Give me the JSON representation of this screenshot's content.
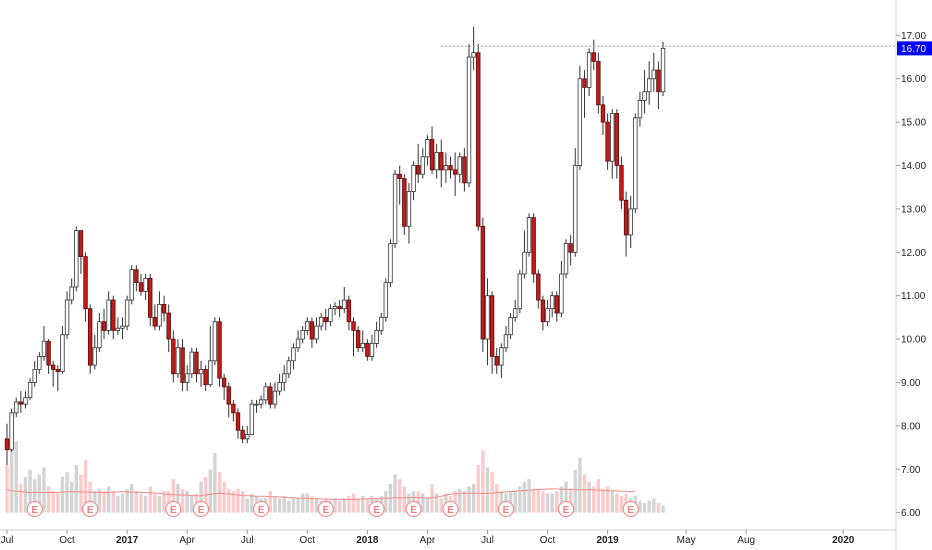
{
  "chart_data": {
    "type": "candlestick",
    "title": "",
    "xlabel": "",
    "ylabel": "",
    "ylim": [
      5.6,
      17.4
    ],
    "y_ticks": [
      "6.00",
      "7.00",
      "8.00",
      "9.00",
      "10.00",
      "11.00",
      "12.00",
      "13.00",
      "14.00",
      "15.00",
      "16.00",
      "17.00"
    ],
    "x_ticks": [
      {
        "label": "Jul",
        "week": 0,
        "year": false
      },
      {
        "label": "Oct",
        "week": 13,
        "year": false
      },
      {
        "label": "2017",
        "week": 26,
        "year": true
      },
      {
        "label": "Apr",
        "week": 39,
        "year": false
      },
      {
        "label": "Jul",
        "week": 52,
        "year": false
      },
      {
        "label": "Oct",
        "week": 65,
        "year": false
      },
      {
        "label": "2018",
        "week": 78,
        "year": true
      },
      {
        "label": "Apr",
        "week": 91,
        "year": false
      },
      {
        "label": "Jul",
        "week": 104,
        "year": false
      },
      {
        "label": "Oct",
        "week": 117,
        "year": false
      },
      {
        "label": "2019",
        "week": 130,
        "year": true
      },
      {
        "label": "May",
        "week": 147,
        "year": false
      },
      {
        "label": "Aug",
        "week": 160,
        "year": false
      },
      {
        "label": "2020",
        "week": 181,
        "year": true
      }
    ],
    "x_start": "2016-07-01",
    "interval": "weekly",
    "last_price": "16.70",
    "high_line": "16.75",
    "colors": {
      "up_body": "#ffffff",
      "up_border": "#333333",
      "down_body": "#c31a1a",
      "down_border": "#5a0c0c",
      "wick": "#333333",
      "price_label_bg": "#0000ff",
      "volume_up": "#d4d4d4",
      "volume_down": "#fbcaca",
      "volume_ma": "#f28b8b",
      "earnings_marker": "#f08080",
      "high_line": "#9e9e9e"
    },
    "earnings_label": "E",
    "earnings_weeks": [
      6,
      18,
      36,
      42,
      55,
      69,
      80,
      88,
      96,
      108,
      121,
      135
    ],
    "volume_ma": [
      6.97,
      6.91,
      6.89,
      6.88,
      6.86,
      6.84,
      6.85,
      6.86,
      6.84,
      6.85,
      6.84,
      6.85,
      6.86,
      6.87,
      6.88,
      6.87,
      6.87,
      6.86,
      6.85,
      6.86,
      6.85,
      6.84,
      6.85,
      6.86,
      6.87,
      6.88,
      6.87,
      6.86,
      6.86,
      6.85,
      6.84,
      6.84,
      6.82,
      6.81,
      6.78,
      6.77,
      6.75,
      6.74,
      6.74,
      6.73,
      6.72,
      6.71,
      6.71,
      6.75,
      6.77,
      6.79,
      6.81,
      6.79,
      6.78,
      6.75,
      6.74,
      6.72,
      6.71,
      6.7,
      6.69,
      6.69,
      6.68,
      6.67,
      6.67,
      6.66,
      6.65,
      6.63,
      6.62,
      6.61,
      6.6,
      6.6,
      6.59,
      6.58,
      6.57,
      6.57,
      6.56,
      6.55,
      6.56,
      6.55,
      6.55,
      6.55,
      6.56,
      6.57,
      6.58,
      6.58,
      6.59,
      6.6,
      6.6,
      6.61,
      6.62,
      6.62,
      6.62,
      6.63,
      6.63,
      6.63,
      6.62,
      6.61,
      6.62,
      6.65,
      6.69,
      6.73,
      6.77,
      6.79,
      6.8,
      6.81,
      6.81,
      6.81,
      6.81,
      6.8,
      6.81,
      6.82,
      6.84,
      6.85,
      6.87,
      6.89,
      6.9,
      6.91,
      6.93,
      6.94,
      6.96,
      6.97,
      6.98,
      6.99,
      7.0,
      6.99,
      6.98,
      6.98,
      6.97,
      6.96,
      6.95,
      6.96,
      6.97,
      6.96,
      6.95,
      6.94,
      6.93,
      6.92,
      6.91,
      6.9,
      6.89,
      6.88,
      6.87
    ],
    "candles": [
      [
        7.7,
        7.45,
        8.05,
        7.1,
        8.0
      ],
      [
        7.45,
        8.3,
        8.4,
        7.4,
        9.0
      ],
      [
        8.3,
        8.55,
        8.65,
        8.2,
        9.0
      ],
      [
        8.55,
        8.5,
        8.8,
        8.3,
        7.2
      ],
      [
        8.5,
        8.65,
        8.8,
        8.4,
        7.5
      ],
      [
        8.65,
        9.0,
        9.1,
        8.6,
        7.8
      ],
      [
        9.0,
        9.3,
        9.5,
        8.9,
        7.4
      ],
      [
        9.3,
        9.6,
        9.7,
        9.2,
        7.6
      ],
      [
        9.6,
        9.95,
        10.3,
        9.5,
        7.9
      ],
      [
        9.95,
        9.4,
        10.0,
        9.2,
        7.1
      ],
      [
        9.4,
        9.3,
        9.5,
        8.9,
        6.9
      ],
      [
        9.3,
        9.25,
        9.4,
        8.8,
        6.8
      ],
      [
        9.25,
        10.1,
        10.3,
        9.2,
        7.5
      ],
      [
        10.1,
        10.9,
        11.1,
        10.0,
        7.7
      ],
      [
        10.9,
        11.2,
        11.4,
        10.8,
        7.3
      ],
      [
        11.2,
        12.5,
        12.6,
        11.1,
        8.0
      ],
      [
        12.5,
        11.9,
        12.0,
        11.5,
        7.6
      ],
      [
        11.9,
        10.7,
        12.0,
        10.4,
        8.2
      ],
      [
        10.7,
        9.4,
        10.8,
        9.2,
        7.3
      ],
      [
        9.4,
        9.8,
        10.1,
        9.3,
        6.9
      ],
      [
        9.8,
        10.4,
        10.6,
        9.7,
        7.0
      ],
      [
        10.4,
        10.2,
        10.7,
        10.0,
        6.9
      ],
      [
        10.2,
        10.9,
        11.1,
        10.1,
        7.1
      ],
      [
        10.9,
        10.2,
        11.0,
        10.0,
        6.9
      ],
      [
        10.2,
        10.25,
        10.5,
        10.1,
        6.7
      ],
      [
        10.25,
        10.3,
        10.5,
        10.0,
        6.8
      ],
      [
        10.3,
        10.9,
        11.0,
        10.2,
        7.0
      ],
      [
        10.9,
        11.6,
        11.7,
        10.8,
        7.2
      ],
      [
        11.6,
        11.3,
        11.7,
        11.1,
        6.9
      ],
      [
        11.3,
        11.1,
        11.5,
        11.0,
        6.8
      ],
      [
        11.1,
        11.4,
        11.5,
        10.9,
        6.7
      ],
      [
        11.4,
        10.5,
        11.5,
        10.3,
        7.1
      ],
      [
        10.5,
        10.3,
        10.8,
        10.2,
        6.8
      ],
      [
        10.3,
        10.8,
        11.1,
        10.2,
        6.7
      ],
      [
        10.8,
        10.6,
        11.0,
        10.4,
        6.9
      ],
      [
        10.6,
        10.0,
        10.8,
        9.7,
        6.9
      ],
      [
        10.0,
        9.2,
        10.2,
        9.0,
        7.4
      ],
      [
        9.2,
        9.8,
        10.0,
        9.1,
        7.2
      ],
      [
        9.8,
        9.0,
        10.0,
        8.8,
        7.0
      ],
      [
        9.0,
        9.2,
        9.4,
        8.8,
        6.9
      ],
      [
        9.2,
        9.7,
        9.8,
        9.1,
        6.7
      ],
      [
        9.7,
        9.2,
        9.8,
        9.0,
        6.8
      ],
      [
        9.2,
        9.3,
        9.5,
        8.9,
        7.3
      ],
      [
        9.3,
        8.95,
        9.4,
        8.8,
        7.5
      ],
      [
        8.95,
        9.5,
        10.3,
        8.9,
        7.8
      ],
      [
        9.5,
        10.4,
        10.5,
        9.4,
        8.5
      ],
      [
        10.4,
        9.1,
        10.5,
        8.9,
        7.7
      ],
      [
        9.1,
        8.9,
        9.2,
        8.6,
        7.3
      ],
      [
        8.9,
        8.5,
        9.0,
        8.2,
        7.0
      ],
      [
        8.5,
        8.3,
        8.6,
        8.1,
        6.9
      ],
      [
        8.3,
        7.9,
        8.4,
        7.7,
        7.0
      ],
      [
        7.9,
        7.7,
        8.0,
        7.6,
        6.9
      ],
      [
        7.7,
        7.8,
        8.0,
        7.6,
        6.6
      ],
      [
        7.8,
        8.5,
        8.6,
        7.8,
        6.8
      ],
      [
        8.5,
        8.5,
        8.6,
        8.3,
        6.7
      ],
      [
        8.5,
        8.6,
        8.7,
        8.4,
        6.6
      ],
      [
        8.6,
        8.9,
        9.0,
        8.5,
        6.6
      ],
      [
        8.9,
        8.5,
        9.0,
        8.4,
        6.9
      ],
      [
        8.5,
        8.8,
        9.0,
        8.4,
        6.7
      ],
      [
        8.8,
        9.0,
        9.2,
        8.7,
        6.6
      ],
      [
        9.0,
        9.2,
        9.4,
        8.8,
        6.7
      ],
      [
        9.2,
        9.5,
        9.6,
        9.1,
        6.5
      ],
      [
        9.5,
        9.8,
        9.9,
        9.3,
        6.6
      ],
      [
        9.8,
        10.0,
        10.2,
        9.7,
        6.6
      ],
      [
        10.0,
        10.2,
        10.3,
        9.9,
        6.8
      ],
      [
        10.2,
        10.4,
        10.5,
        10.1,
        6.8
      ],
      [
        10.4,
        10.0,
        10.5,
        9.8,
        6.7
      ],
      [
        10.0,
        10.3,
        10.5,
        9.9,
        6.6
      ],
      [
        10.3,
        10.5,
        10.6,
        10.2,
        6.5
      ],
      [
        10.5,
        10.4,
        10.7,
        10.2,
        6.6
      ],
      [
        10.4,
        10.7,
        10.8,
        10.3,
        6.5
      ],
      [
        10.7,
        10.75,
        10.85,
        10.55,
        6.6
      ],
      [
        10.75,
        10.7,
        10.9,
        10.5,
        6.5
      ],
      [
        10.7,
        10.9,
        11.2,
        10.6,
        6.6
      ],
      [
        10.9,
        10.4,
        11.0,
        10.2,
        6.7
      ],
      [
        10.4,
        10.2,
        10.5,
        9.6,
        6.8
      ],
      [
        10.2,
        9.8,
        10.3,
        9.7,
        6.6
      ],
      [
        9.8,
        9.9,
        10.2,
        9.7,
        6.7
      ],
      [
        9.9,
        9.6,
        10.0,
        9.5,
        6.6
      ],
      [
        9.6,
        9.9,
        10.1,
        9.5,
        6.7
      ],
      [
        9.9,
        10.2,
        10.4,
        9.8,
        6.6
      ],
      [
        10.2,
        10.5,
        10.6,
        10.1,
        6.7
      ],
      [
        10.5,
        11.3,
        11.4,
        10.4,
        6.9
      ],
      [
        11.3,
        12.2,
        12.3,
        11.2,
        7.2
      ],
      [
        12.2,
        13.8,
        13.9,
        12.1,
        7.6
      ],
      [
        13.8,
        13.7,
        14.0,
        13.1,
        7.4
      ],
      [
        13.7,
        12.6,
        13.8,
        12.4,
        7.1
      ],
      [
        12.6,
        13.4,
        13.6,
        12.2,
        6.8
      ],
      [
        13.4,
        14.0,
        14.1,
        13.2,
        6.9
      ],
      [
        14.0,
        13.8,
        14.5,
        13.6,
        6.9
      ],
      [
        13.8,
        14.2,
        14.4,
        13.7,
        6.8
      ],
      [
        14.2,
        14.6,
        14.7,
        14.0,
        6.6
      ],
      [
        14.6,
        13.9,
        14.9,
        13.8,
        7.2
      ],
      [
        13.9,
        14.3,
        14.5,
        13.7,
        6.8
      ],
      [
        14.3,
        13.9,
        14.6,
        13.5,
        6.6
      ],
      [
        13.9,
        14.0,
        14.3,
        13.6,
        6.8
      ],
      [
        14.0,
        13.9,
        14.2,
        13.7,
        6.7
      ],
      [
        13.9,
        13.8,
        14.3,
        13.3,
        6.9
      ],
      [
        13.8,
        14.2,
        14.3,
        13.6,
        7.0
      ],
      [
        14.2,
        13.6,
        14.4,
        13.4,
        6.9
      ],
      [
        13.6,
        16.5,
        16.8,
        13.5,
        7.1
      ],
      [
        16.5,
        16.6,
        17.2,
        16.2,
        7.2
      ],
      [
        16.6,
        12.6,
        16.8,
        12.5,
        8.0
      ],
      [
        12.6,
        10.0,
        12.8,
        9.7,
        8.6
      ],
      [
        10.0,
        11.0,
        11.4,
        9.4,
        7.9
      ],
      [
        11.0,
        9.6,
        11.1,
        9.2,
        7.7
      ],
      [
        9.6,
        9.4,
        9.8,
        9.2,
        7.2
      ],
      [
        9.4,
        9.8,
        9.9,
        9.1,
        6.9
      ],
      [
        9.8,
        10.1,
        10.3,
        9.7,
        6.8
      ],
      [
        10.1,
        10.5,
        10.6,
        10.0,
        6.9
      ],
      [
        10.5,
        10.7,
        10.9,
        10.4,
        6.9
      ],
      [
        10.7,
        11.5,
        11.6,
        10.6,
        7.1
      ],
      [
        11.5,
        12.0,
        12.5,
        11.4,
        7.3
      ],
      [
        12.0,
        12.8,
        12.9,
        11.9,
        7.4
      ],
      [
        12.8,
        11.5,
        12.9,
        11.3,
        7.0
      ],
      [
        11.5,
        10.9,
        11.6,
        10.7,
        7.0
      ],
      [
        10.9,
        10.4,
        11.0,
        10.2,
        6.9
      ],
      [
        10.4,
        10.7,
        10.9,
        10.3,
        6.8
      ],
      [
        10.7,
        11.0,
        11.1,
        10.5,
        6.8
      ],
      [
        11.0,
        10.6,
        11.1,
        10.4,
        6.9
      ],
      [
        10.6,
        11.5,
        11.8,
        10.5,
        7.1
      ],
      [
        11.5,
        12.2,
        12.3,
        11.4,
        7.3
      ],
      [
        12.2,
        12.0,
        12.4,
        11.7,
        7.0
      ],
      [
        12.0,
        14.0,
        14.4,
        11.9,
        7.8
      ],
      [
        14.0,
        16.0,
        16.3,
        13.9,
        8.3
      ],
      [
        16.0,
        15.8,
        16.2,
        15.1,
        7.6
      ],
      [
        15.8,
        16.6,
        16.7,
        15.6,
        7.3
      ],
      [
        16.6,
        16.4,
        16.9,
        16.2,
        7.1
      ],
      [
        16.4,
        15.4,
        16.6,
        15.2,
        7.4
      ],
      [
        15.4,
        15.0,
        15.6,
        14.7,
        7.0
      ],
      [
        15.0,
        14.1,
        15.2,
        13.9,
        7.1
      ],
      [
        14.1,
        15.2,
        15.3,
        13.7,
        6.9
      ],
      [
        15.2,
        14.0,
        15.3,
        13.7,
        6.8
      ],
      [
        14.0,
        13.2,
        14.2,
        13.0,
        6.7
      ],
      [
        13.2,
        12.4,
        13.4,
        11.9,
        6.8
      ],
      [
        12.4,
        13.0,
        13.3,
        12.1,
        6.6
      ],
      [
        13.0,
        15.1,
        15.2,
        12.9,
        6.7
      ],
      [
        15.1,
        15.5,
        15.7,
        14.9,
        6.5
      ],
      [
        15.5,
        15.7,
        16.2,
        15.2,
        6.4
      ],
      [
        15.7,
        16.0,
        16.4,
        15.4,
        6.5
      ],
      [
        16.0,
        16.2,
        16.6,
        15.7,
        6.6
      ],
      [
        16.2,
        15.7,
        16.4,
        15.3,
        6.4
      ],
      [
        15.7,
        16.7,
        16.85,
        15.6,
        6.3
      ]
    ]
  }
}
